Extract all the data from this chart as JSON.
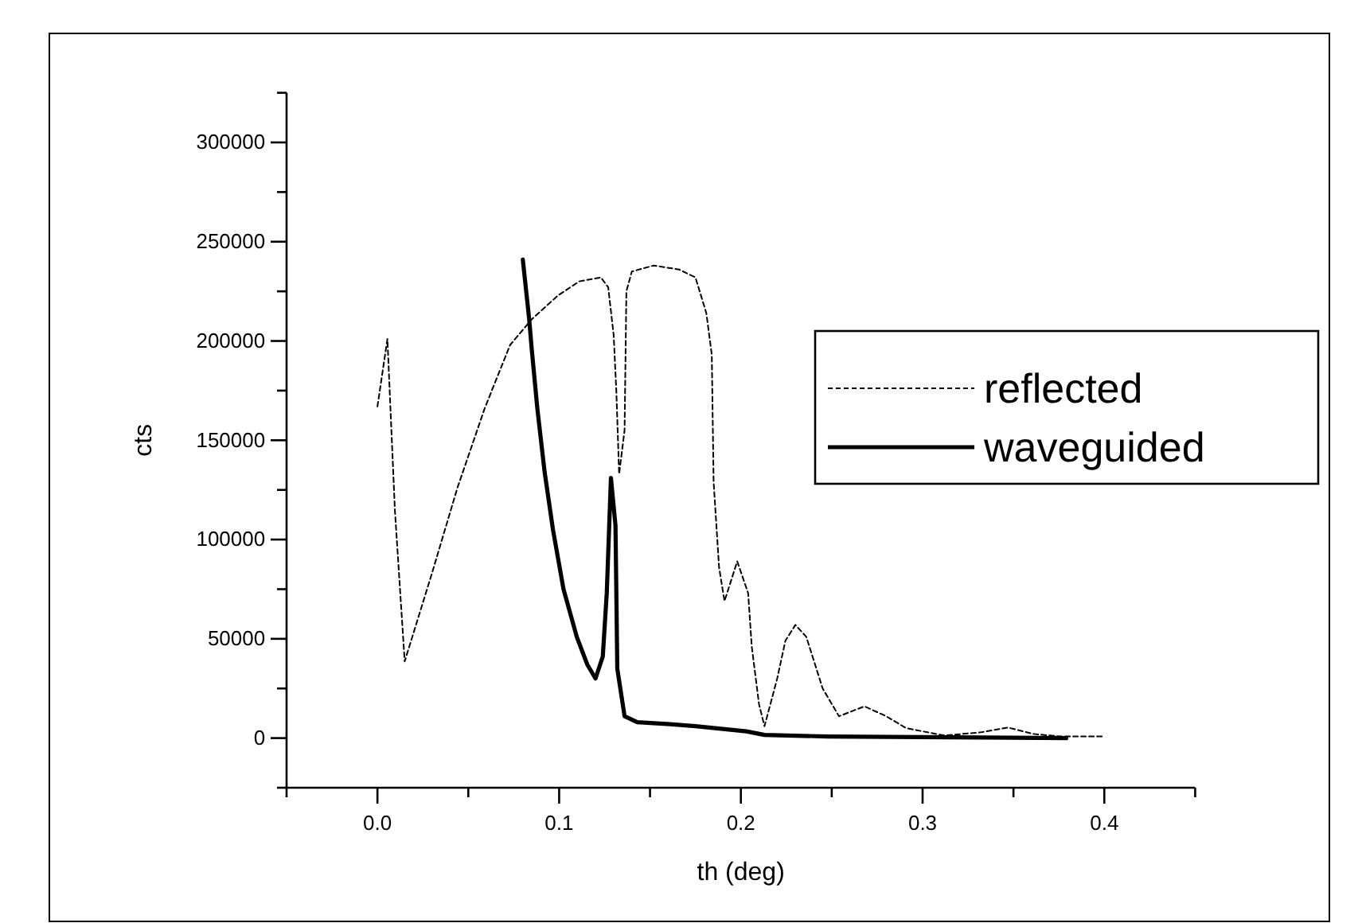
{
  "chart_data": {
    "type": "line",
    "xlabel": "th (deg)",
    "ylabel": "cts",
    "xlim": [
      -0.05,
      0.45
    ],
    "xticks": [
      {
        "value": -0.05,
        "label": null
      },
      {
        "value": 0,
        "label": "0.0"
      },
      {
        "value": 0.05,
        "label": null
      },
      {
        "value": 0.1,
        "label": "0.1"
      },
      {
        "value": 0.15,
        "label": null
      },
      {
        "value": 0.2,
        "label": "0.2"
      },
      {
        "value": 0.25,
        "label": null
      },
      {
        "value": 0.3,
        "label": "0.3"
      },
      {
        "value": 0.35,
        "label": null
      },
      {
        "value": 0.4,
        "label": "0.4"
      },
      {
        "value": 0.45,
        "label": null
      }
    ],
    "ylim": [
      -25000,
      325000
    ],
    "yticks": [
      {
        "value": -25000,
        "label": null
      },
      0,
      {
        "value": 25000,
        "label": null
      },
      50000,
      {
        "value": 75000,
        "label": null
      },
      100000,
      {
        "value": 125000,
        "label": null
      },
      150000,
      {
        "value": 175000,
        "label": null
      },
      200000,
      {
        "value": 225000,
        "label": null
      },
      250000,
      {
        "value": 275000,
        "label": null
      },
      300000,
      {
        "value": 325000,
        "label": null
      }
    ],
    "grid": false,
    "legend": "right",
    "marker": "none",
    "series": [
      {
        "name": "reflected",
        "color": "#000000",
        "line_style": "dashed",
        "x": [
          0.0,
          0.0055,
          0.0096,
          0.015,
          0.03,
          0.044,
          0.059,
          0.073,
          0.085,
          0.0995,
          0.111,
          0.123,
          0.127,
          0.13,
          0.1315,
          0.133,
          0.136,
          0.137,
          0.14,
          0.152,
          0.166,
          0.175,
          0.181,
          0.184,
          0.185,
          0.188,
          0.191,
          0.198,
          0.204,
          0.206,
          0.21,
          0.213,
          0.22,
          0.2245,
          0.23,
          0.236,
          0.245,
          0.254,
          0.268,
          0.28,
          0.291,
          0.312,
          0.332,
          0.347,
          0.361,
          0.376,
          0.4
        ],
        "values": [
          167000,
          201000,
          115000,
          38600,
          83000,
          126000,
          166000,
          198000,
          211000,
          223000,
          230000,
          232000,
          227000,
          203000,
          174000,
          133000,
          155000,
          225000,
          235000,
          238000,
          236000,
          232000,
          214000,
          193000,
          129000,
          86000,
          69000,
          89000,
          73000,
          46000,
          17000,
          6000,
          30000,
          49000,
          57000,
          51000,
          25000,
          11000,
          16000,
          11000,
          5000,
          1300,
          2900,
          5300,
          2100,
          800,
          800
        ]
      },
      {
        "name": "waveguided",
        "color": "#000000",
        "line_style": "solid",
        "x": [
          0.08,
          0.0835,
          0.085,
          0.088,
          0.092,
          0.0966,
          0.1024,
          0.1097,
          0.1155,
          0.12,
          0.124,
          0.1262,
          0.1285,
          0.131,
          0.132,
          0.136,
          0.143,
          0.161,
          0.175,
          0.203,
          0.213,
          0.248,
          0.379
        ],
        "values": [
          241000,
          211000,
          195000,
          166000,
          134000,
          105000,
          75000,
          51000,
          37000,
          30000,
          41000,
          73000,
          131000,
          107000,
          35000,
          11000,
          8000,
          7000,
          6000,
          3400,
          1600,
          800,
          0
        ]
      }
    ]
  }
}
